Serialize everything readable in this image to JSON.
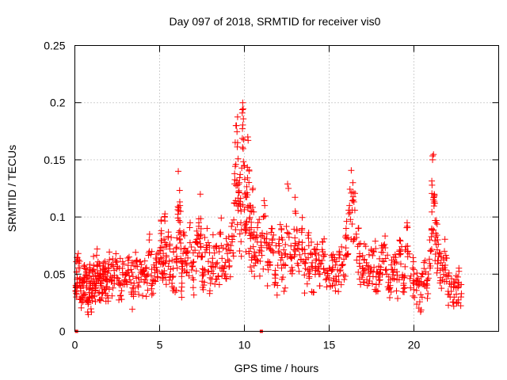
{
  "chart_data": {
    "type": "scatter",
    "title": "Day 097 of 2018, SRMTID for receiver vis0",
    "xlabel": "GPS time / hours",
    "ylabel": "SRMTID / TECUs",
    "xlim": [
      0,
      25
    ],
    "ylim": [
      0,
      0.25
    ],
    "x_ticks": [
      0,
      5,
      10,
      15,
      20
    ],
    "x_tick_labels": [
      "0",
      "5",
      "10",
      "15",
      "20"
    ],
    "y_ticks": [
      0,
      0.05,
      0.1,
      0.15,
      0.2,
      0.25
    ],
    "y_tick_labels": [
      "0",
      "0.05",
      "0.1",
      "0.15",
      "0.2",
      "0.25"
    ],
    "grid": true,
    "marker": "plus",
    "series": [
      {
        "name": "SRMTID",
        "color": "#ff0000",
        "x": [
          0.05,
          0.1,
          0.2,
          0.3,
          0.4,
          0.5,
          0.6,
          0.7,
          0.8,
          0.9,
          1.0,
          1.1,
          1.2,
          1.3,
          1.4,
          1.5,
          1.6,
          1.7,
          1.8,
          1.9,
          2.0,
          2.2,
          2.4,
          2.6,
          2.8,
          3.0,
          3.2,
          3.4,
          3.6,
          3.8,
          4.0,
          4.2,
          4.4,
          4.6,
          4.8,
          5.0,
          5.1,
          5.2,
          5.3,
          5.4,
          5.6,
          5.8,
          6.0,
          6.1,
          6.2,
          6.3,
          6.4,
          6.6,
          6.8,
          7.0,
          7.2,
          7.4,
          7.5,
          7.6,
          7.8,
          8.0,
          8.2,
          8.4,
          8.6,
          8.8,
          9.0,
          9.2,
          9.4,
          9.5,
          9.6,
          9.7,
          9.8,
          9.9,
          10.0,
          10.1,
          10.2,
          10.3,
          10.4,
          10.5,
          10.6,
          10.8,
          11.0,
          11.2,
          11.4,
          11.6,
          11.8,
          12.0,
          12.2,
          12.4,
          12.6,
          12.8,
          13.0,
          13.2,
          13.4,
          13.6,
          13.8,
          14.0,
          14.2,
          14.4,
          14.6,
          14.8,
          15.0,
          15.2,
          15.4,
          15.6,
          15.8,
          16.0,
          16.2,
          16.4,
          16.6,
          16.8,
          17.0,
          17.2,
          17.4,
          17.6,
          17.8,
          18.0,
          18.2,
          18.4,
          18.6,
          18.8,
          19.0,
          19.2,
          19.4,
          19.6,
          19.8,
          20.0,
          20.2,
          20.4,
          20.6,
          20.8,
          21.0,
          21.1,
          21.2,
          21.3,
          21.4,
          21.6,
          21.8,
          22.0,
          22.2,
          22.4,
          22.6,
          22.8
        ],
        "y": [
          0.035,
          0.052,
          0.068,
          0.04,
          0.03,
          0.045,
          0.055,
          0.038,
          0.025,
          0.042,
          0.03,
          0.048,
          0.036,
          0.058,
          0.044,
          0.05,
          0.033,
          0.06,
          0.046,
          0.039,
          0.053,
          0.047,
          0.062,
          0.041,
          0.055,
          0.049,
          0.065,
          0.038,
          0.057,
          0.043,
          0.052,
          0.048,
          0.07,
          0.045,
          0.056,
          0.061,
          0.088,
          0.05,
          0.1,
          0.065,
          0.072,
          0.055,
          0.06,
          0.14,
          0.11,
          0.048,
          0.085,
          0.058,
          0.095,
          0.045,
          0.078,
          0.12,
          0.065,
          0.05,
          0.09,
          0.042,
          0.073,
          0.06,
          0.085,
          0.055,
          0.068,
          0.075,
          0.112,
          0.18,
          0.165,
          0.13,
          0.105,
          0.2,
          0.145,
          0.095,
          0.17,
          0.11,
          0.085,
          0.125,
          0.065,
          0.095,
          0.075,
          0.11,
          0.06,
          0.09,
          0.05,
          0.07,
          0.082,
          0.058,
          0.125,
          0.065,
          0.105,
          0.072,
          0.09,
          0.055,
          0.075,
          0.06,
          0.068,
          0.05,
          0.078,
          0.045,
          0.055,
          0.062,
          0.048,
          0.07,
          0.058,
          0.09,
          0.11,
          0.13,
          0.085,
          0.065,
          0.055,
          0.06,
          0.048,
          0.07,
          0.052,
          0.045,
          0.075,
          0.05,
          0.04,
          0.065,
          0.045,
          0.07,
          0.042,
          0.095,
          0.038,
          0.05,
          0.044,
          0.032,
          0.055,
          0.045,
          0.07,
          0.15,
          0.12,
          0.095,
          0.08,
          0.06,
          0.07,
          0.048,
          0.035,
          0.042,
          0.038,
          0.033
        ],
        "spread": 0.012
      }
    ],
    "markers_at_zero": [
      0.1,
      11.0
    ]
  }
}
